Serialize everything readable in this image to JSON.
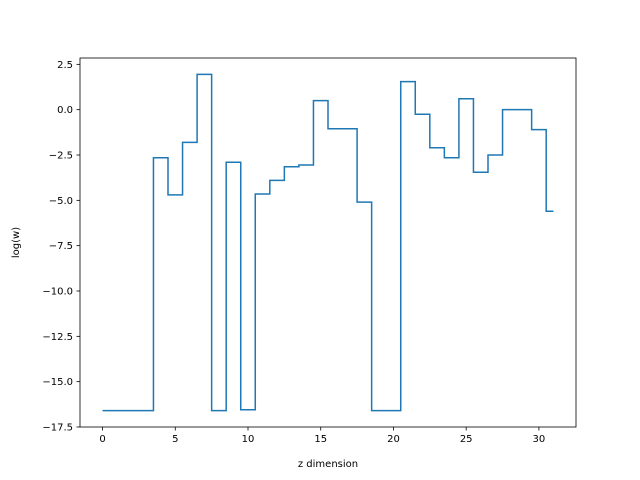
{
  "chart_data": {
    "type": "line",
    "drawstyle": "steps-mid",
    "title": "",
    "xlabel": "z dimension",
    "ylabel": "log(w)",
    "xlim": [
      -1.55,
      32.55
    ],
    "ylim": [
      -17.5,
      2.85
    ],
    "grid": false,
    "legend": "none",
    "line_color": "#1f77b4",
    "x_ticks": [
      0,
      5,
      10,
      15,
      20,
      25,
      30
    ],
    "x_tick_labels": [
      "0",
      "5",
      "10",
      "15",
      "20",
      "25",
      "30"
    ],
    "y_ticks": [
      2.5,
      0,
      -2.5,
      -5,
      -7.5,
      -10,
      -12.5,
      -15,
      -17.5
    ],
    "y_tick_labels": [
      "2.5",
      "0.0",
      "−2.5",
      "−5.0",
      "−7.5",
      "−10.0",
      "−12.5",
      "−15.0",
      "−17.5"
    ],
    "series": [
      {
        "x": [
          0,
          1,
          2,
          3,
          4,
          5,
          6,
          7,
          8,
          9,
          10,
          11,
          12,
          13,
          14,
          15,
          16,
          17,
          18,
          19,
          20,
          21,
          22,
          23,
          24,
          25,
          26,
          27,
          28,
          29,
          30,
          31
        ],
        "values": [
          -16.6,
          -16.6,
          -16.6,
          -16.6,
          -2.65,
          -4.7,
          -1.8,
          1.95,
          -16.6,
          -2.9,
          -16.55,
          -4.65,
          -3.9,
          -3.15,
          -3.05,
          0.5,
          -1.05,
          -1.05,
          -5.1,
          -16.6,
          -16.6,
          1.55,
          -0.25,
          -2.1,
          -2.65,
          0.6,
          -3.45,
          -2.5,
          0.0,
          0.0,
          -1.1,
          -5.6
        ]
      }
    ]
  }
}
